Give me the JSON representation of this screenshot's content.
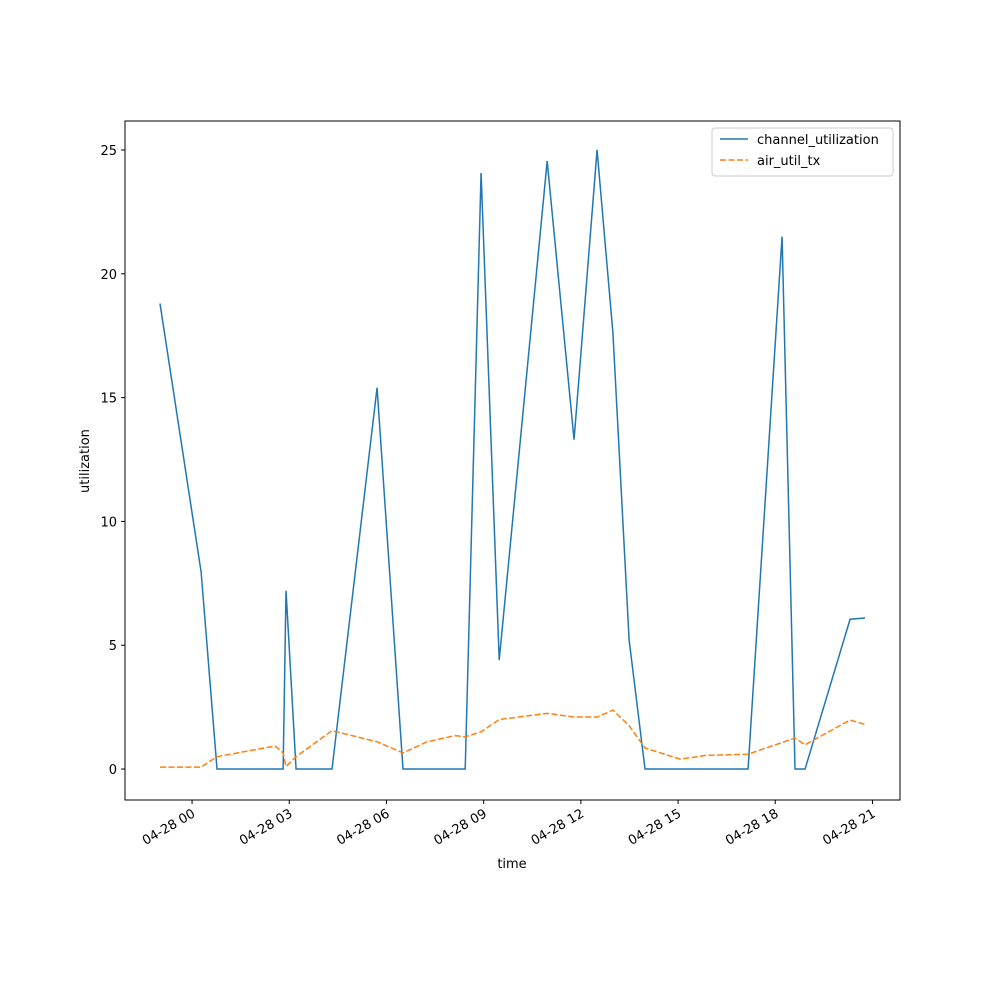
{
  "chart_data": {
    "type": "line",
    "xlabel": "time",
    "ylabel": "utilization",
    "xlim": [
      -2.07,
      21.85
    ],
    "ylim": [
      -1.25,
      26.17
    ],
    "xticks": [
      {
        "value": 0,
        "label": "04-28 00"
      },
      {
        "value": 3,
        "label": "04-28 03"
      },
      {
        "value": 6,
        "label": "04-28 06"
      },
      {
        "value": 9,
        "label": "04-28 09"
      },
      {
        "value": 12,
        "label": "04-28 12"
      },
      {
        "value": 15,
        "label": "04-28 15"
      },
      {
        "value": 18,
        "label": "04-28 18"
      },
      {
        "value": 21,
        "label": "04-28 21"
      }
    ],
    "yticks": [
      0,
      5,
      10,
      15,
      20,
      25
    ],
    "legend": "upper right",
    "series": [
      {
        "name": "channel_utilization",
        "color": "#1f77b4",
        "dash": "solid",
        "x": [
          -0.99,
          0.28,
          0.77,
          2.81,
          2.9,
          3.21,
          4.32,
          5.71,
          6.51,
          8.43,
          8.92,
          9.48,
          10.96,
          11.79,
          12.5,
          12.99,
          13.49,
          13.98,
          17.16,
          18.21,
          18.61,
          18.92,
          20.31,
          20.77
        ],
        "values": [
          18.8,
          7.95,
          0,
          0,
          7.2,
          0,
          0,
          15.4,
          0,
          0,
          24.07,
          4.4,
          24.55,
          13.3,
          25.0,
          17.6,
          5.2,
          0,
          0,
          21.5,
          0,
          0,
          6.05,
          6.1
        ]
      },
      {
        "name": "air_util_tx",
        "color": "#ff7f0e",
        "dash": "dashed",
        "x": [
          -0.99,
          0.28,
          0.77,
          2.56,
          2.81,
          2.9,
          3.21,
          4.32,
          5.71,
          6.51,
          7.25,
          8.12,
          8.43,
          8.92,
          9.48,
          10.96,
          11.79,
          12.5,
          12.99,
          13.49,
          13.98,
          15.06,
          15.86,
          17.16,
          18.61,
          18.92,
          20.31,
          20.77
        ],
        "values": [
          0.08,
          0.08,
          0.5,
          0.93,
          0.65,
          0.1,
          0.5,
          1.55,
          1.1,
          0.65,
          1.1,
          1.35,
          1.3,
          1.5,
          2.0,
          2.25,
          2.1,
          2.1,
          2.38,
          1.75,
          0.85,
          0.4,
          0.55,
          0.6,
          1.25,
          0.98,
          1.98,
          1.8
        ]
      }
    ]
  }
}
